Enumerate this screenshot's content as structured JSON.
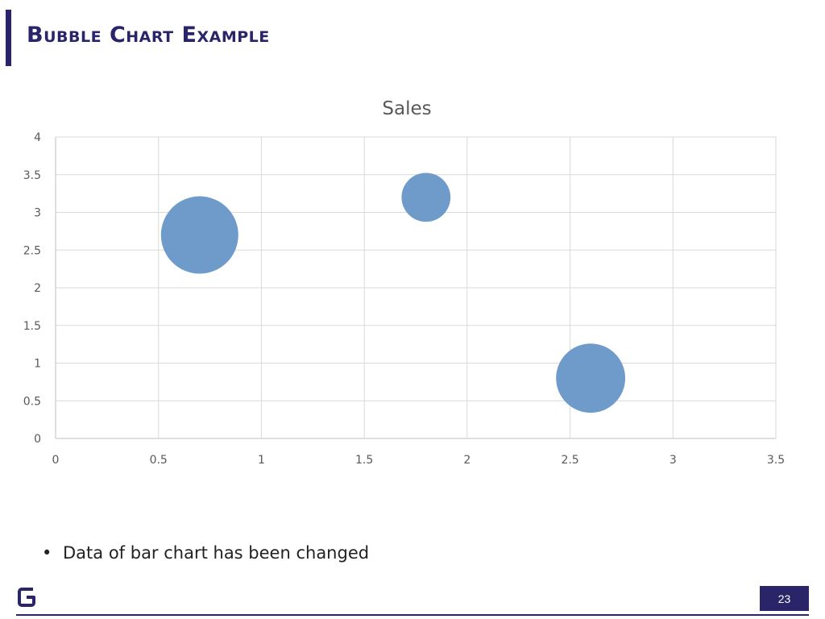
{
  "slide": {
    "title": "Bubble Chart Example",
    "bullets": [
      "Data of bar chart has been changed"
    ],
    "page_number": "23",
    "accent_color": "#2a2569",
    "logo_icon": "g-logo-icon"
  },
  "chart_data": {
    "type": "scatter",
    "subtype": "bubble",
    "title": "Sales",
    "xlabel": "",
    "ylabel": "",
    "xlim": [
      0,
      3.5
    ],
    "ylim": [
      0,
      4
    ],
    "x_ticks": [
      "0",
      "0.5",
      "1",
      "1.5",
      "2",
      "2.5",
      "3",
      "3.5"
    ],
    "y_ticks": [
      "0",
      "0.5",
      "1",
      "1.5",
      "2",
      "2.5",
      "3",
      "3.5",
      "4"
    ],
    "grid": true,
    "legend": "none",
    "bubble_color": "#6f9bcb",
    "series": [
      {
        "points": [
          {
            "x": 0.7,
            "y": 2.7,
            "size": 10
          },
          {
            "x": 1.8,
            "y": 3.2,
            "size": 4
          },
          {
            "x": 2.6,
            "y": 0.8,
            "size": 8
          }
        ]
      }
    ]
  }
}
